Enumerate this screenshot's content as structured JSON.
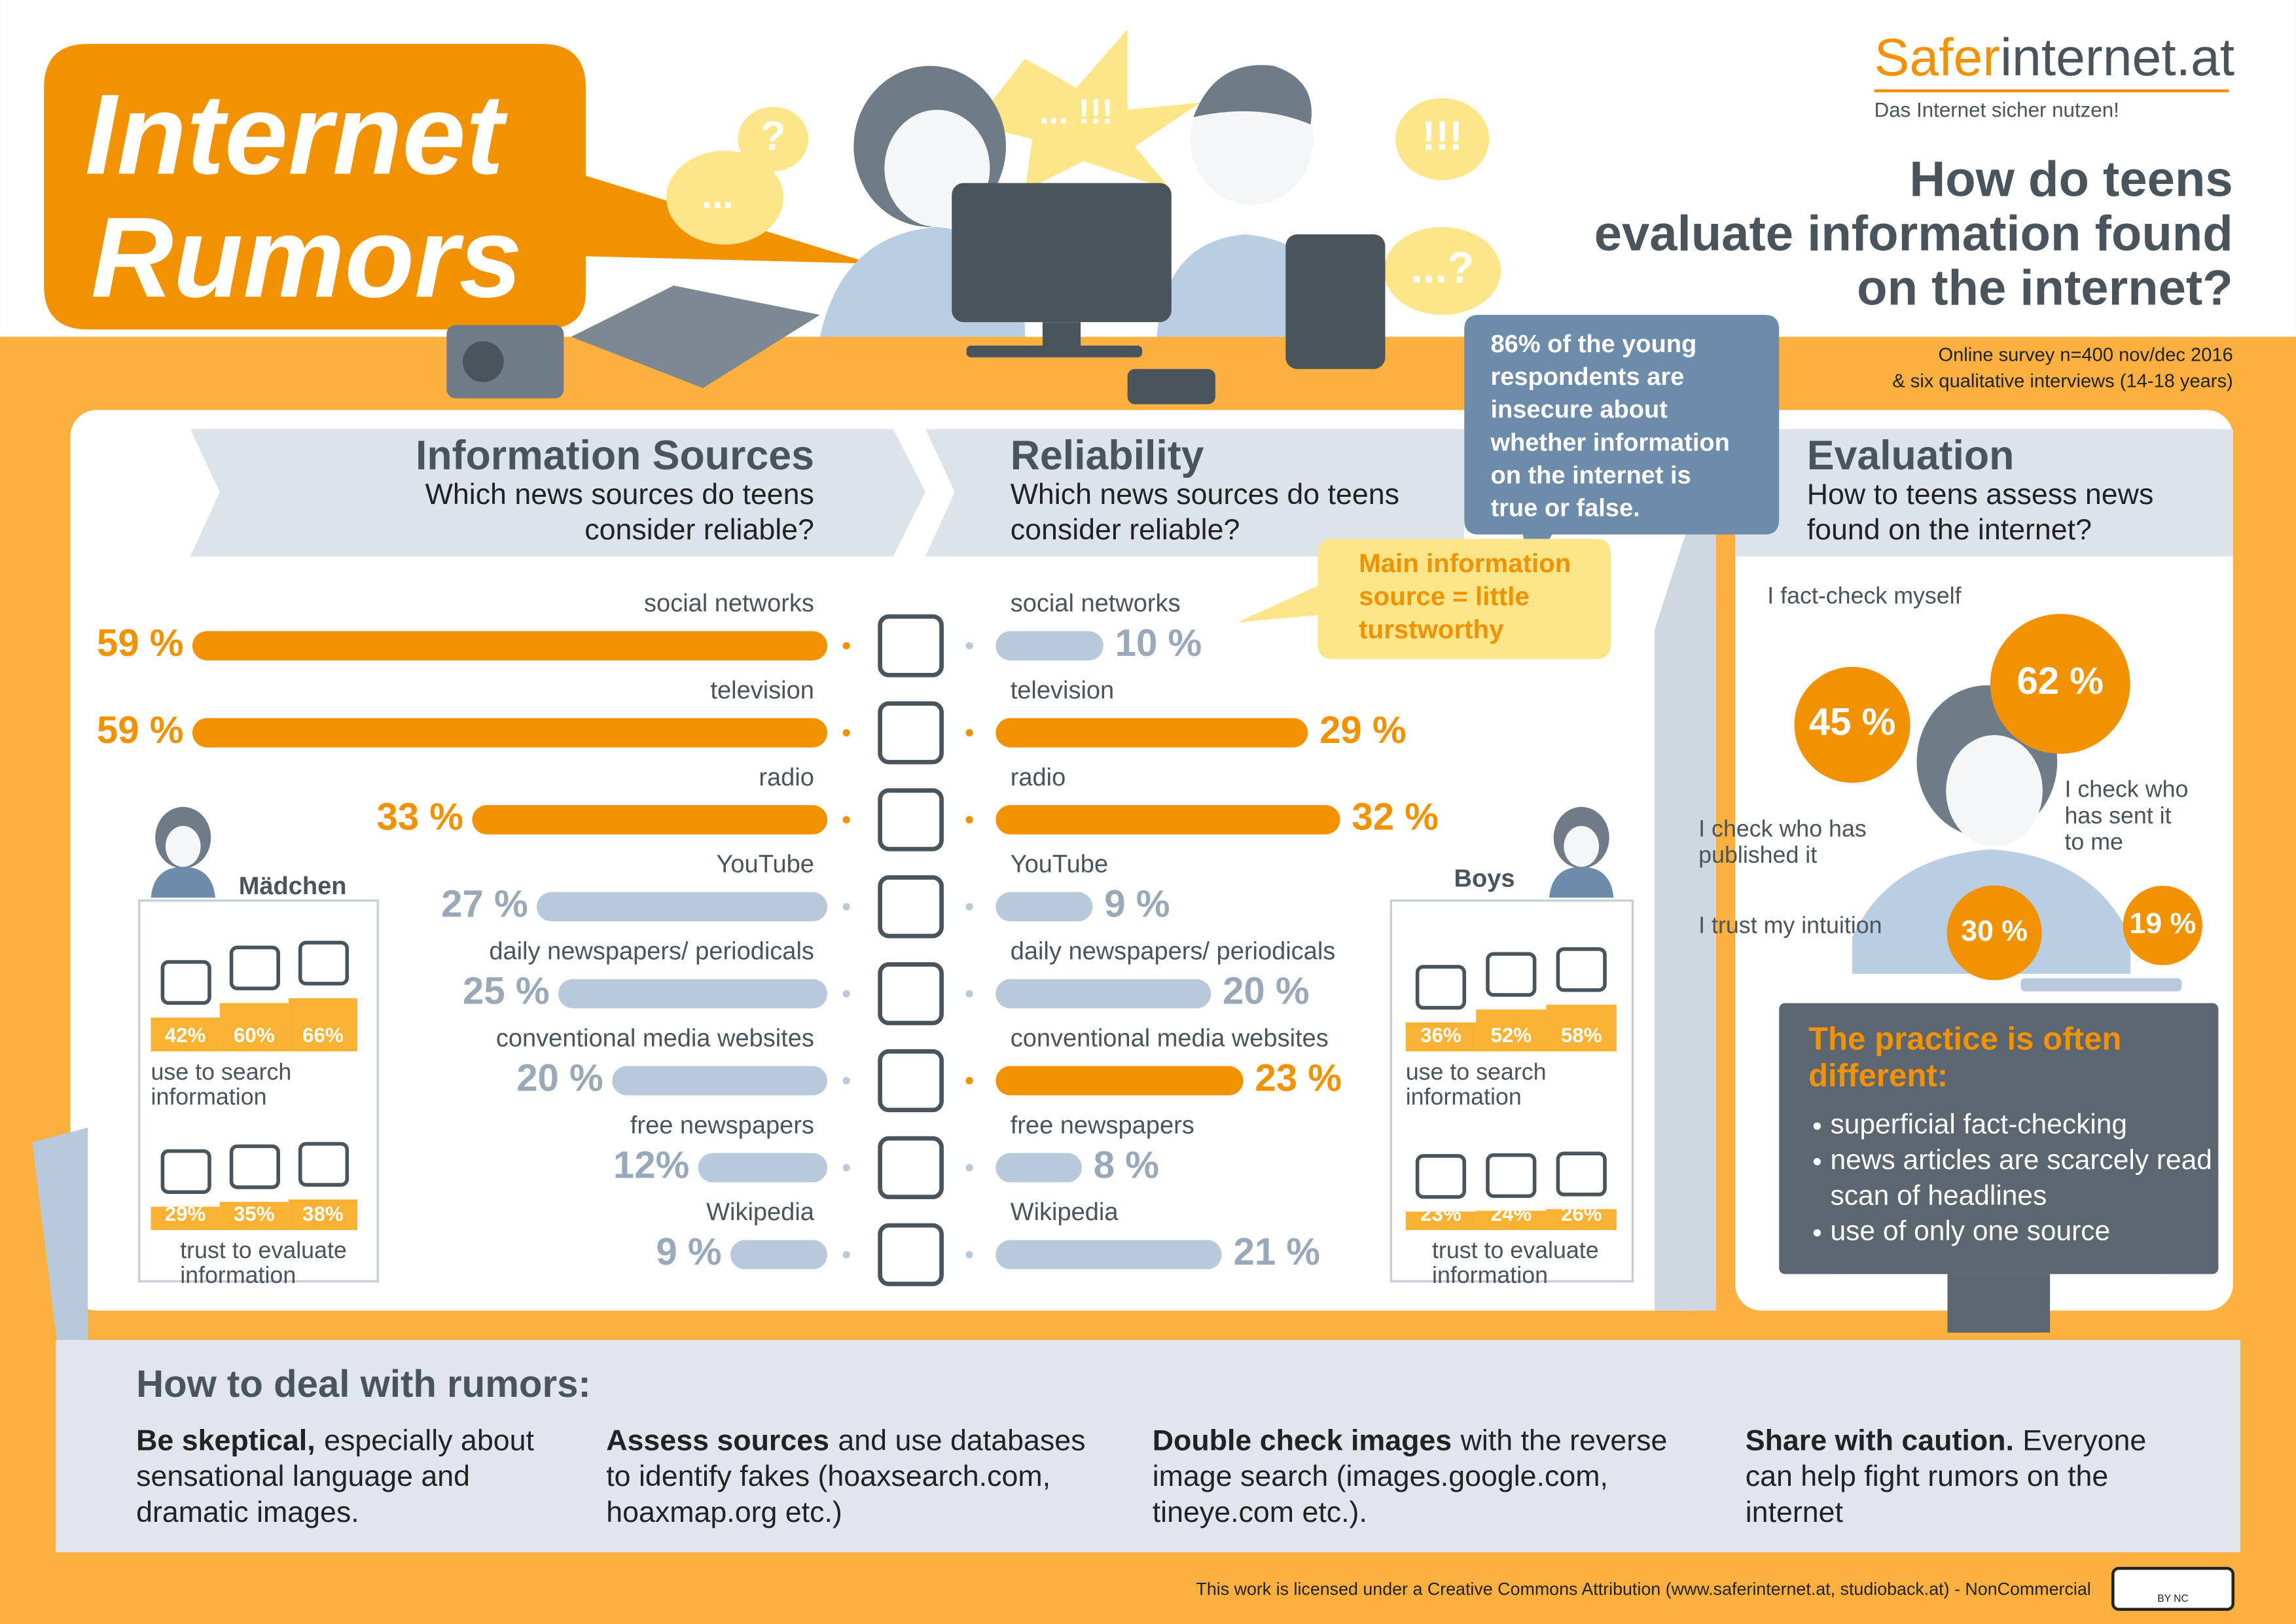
{
  "header": {
    "title": [
      "Internet",
      "Rumors"
    ],
    "logo": {
      "brand": "Safer",
      "domain": "internet.at"
    },
    "tagline": "Das Internet sicher nutzen!",
    "question": [
      "How do teens",
      "evaluate information found",
      "on the internet?"
    ],
    "survey": [
      "Online survey n=400 nov/dec 2016",
      "& six qualitative interviews (14-18 years)"
    ],
    "exclamations": [
      "... !!!",
      "?",
      "!!!",
      "...?",
      "..."
    ]
  },
  "callouts": {
    "insecure": [
      "86% of the young",
      "respondents are",
      "insecure about",
      "whether information",
      "on the internet is",
      "true or false."
    ],
    "main_source": [
      "Main information",
      "source = little",
      "turstworthy"
    ]
  },
  "chart_data": [
    {
      "type": "bar",
      "direction": "left",
      "title": "Information Sources",
      "subtitle": [
        "Which news sources do teens",
        "consider reliable?"
      ],
      "categories": [
        "social networks",
        "television",
        "radio",
        "YouTube",
        "daily newspapers/ periodicals",
        "conventional media websites",
        "free newspapers",
        "Wikipedia"
      ],
      "values": [
        59,
        59,
        33,
        27,
        25,
        20,
        12,
        9
      ],
      "value_labels": [
        "59 %",
        "59 %",
        "33 %",
        "27 %",
        "25 %",
        "20 %",
        "12%",
        "9 %"
      ],
      "colors": [
        "#f39200",
        "#f39200",
        "#f39200",
        "#b9c9dc",
        "#b9c9dc",
        "#b9c9dc",
        "#b9c9dc",
        "#b9c9dc"
      ]
    },
    {
      "type": "bar",
      "direction": "right",
      "title": "Reliability",
      "subtitle": [
        "Which news sources do teens",
        "consider reliable?"
      ],
      "categories": [
        "social networks",
        "television",
        "radio",
        "YouTube",
        "daily newspapers/ periodicals",
        "conventional media websites",
        "free newspapers",
        "Wikipedia"
      ],
      "values": [
        10,
        29,
        32,
        9,
        20,
        23,
        8,
        21
      ],
      "value_labels": [
        "10 %",
        "29 %",
        "32 %",
        "9 %",
        "20 %",
        "23 %",
        "8 %",
        "21 %"
      ],
      "colors": [
        "#b9c9dc",
        "#f39200",
        "#f39200",
        "#b9c9dc",
        "#b9c9dc",
        "#f39200",
        "#b9c9dc",
        "#b9c9dc"
      ]
    },
    {
      "type": "bubble",
      "title": "Evaluation",
      "subtitle": [
        "How to teens assess news",
        "found on the internet?"
      ],
      "categories": [
        [
          "I fact-check myself"
        ],
        [
          "I check who has",
          "published it"
        ],
        [
          "I check who",
          "has sent it",
          "to me"
        ],
        [
          "I trust my intuition"
        ]
      ],
      "values": [
        62,
        45,
        19,
        30
      ],
      "value_labels": [
        "62 %",
        "45 %",
        "19 %",
        "30 %"
      ],
      "color": "#f39200"
    },
    {
      "type": "column",
      "title": "Mädchen",
      "color": "#f9b233",
      "groups": [
        {
          "label": [
            "use to search",
            "information"
          ],
          "values": [
            42,
            60,
            66
          ],
          "value_labels": [
            "42%",
            "60%",
            "66%"
          ]
        },
        {
          "label": [
            "trust to evaluate",
            "information"
          ],
          "values": [
            29,
            35,
            38
          ],
          "value_labels": [
            "29%",
            "35%",
            "38%"
          ]
        }
      ]
    },
    {
      "type": "column",
      "title": "Boys",
      "color": "#f9b233",
      "groups": [
        {
          "label": [
            "use to search",
            "information"
          ],
          "values": [
            36,
            52,
            58
          ],
          "value_labels": [
            "36%",
            "52%",
            "58%"
          ]
        },
        {
          "label": [
            "trust to evaluate",
            "information"
          ],
          "values": [
            23,
            24,
            26
          ],
          "value_labels": [
            "23%",
            "24%",
            "26%"
          ]
        }
      ]
    }
  ],
  "practice": {
    "title": [
      "The practice is often",
      "different:"
    ],
    "bullets": [
      [
        "superficial fact-checking"
      ],
      [
        "news articles are scarcely read -",
        "scan of headlines"
      ],
      [
        "use of only one source"
      ]
    ]
  },
  "tips": {
    "title": "How to deal with rumors:",
    "items": [
      {
        "lead": "Be skeptical,",
        "rest": [
          "especially about",
          "sensational language and",
          "dramatic images."
        ]
      },
      {
        "lead": "Assess sources",
        "rest": [
          "and use databases",
          "to identify fakes (hoaxsearch.com,",
          "hoaxmap.org etc.)"
        ]
      },
      {
        "lead": "Double check images",
        "rest": [
          "with the reverse",
          "image search (images.google.com,",
          "tineye.com etc.)."
        ]
      },
      {
        "lead": "Share with caution.",
        "rest": [
          "Everyone",
          "can help fight rumors on the",
          "internet"
        ]
      }
    ]
  },
  "footer": {
    "license": "This work is licensed under a Creative Commons Attribution (www.saferinternet.at, studioback.at) - NonCommercial",
    "badge": "BY NC"
  }
}
